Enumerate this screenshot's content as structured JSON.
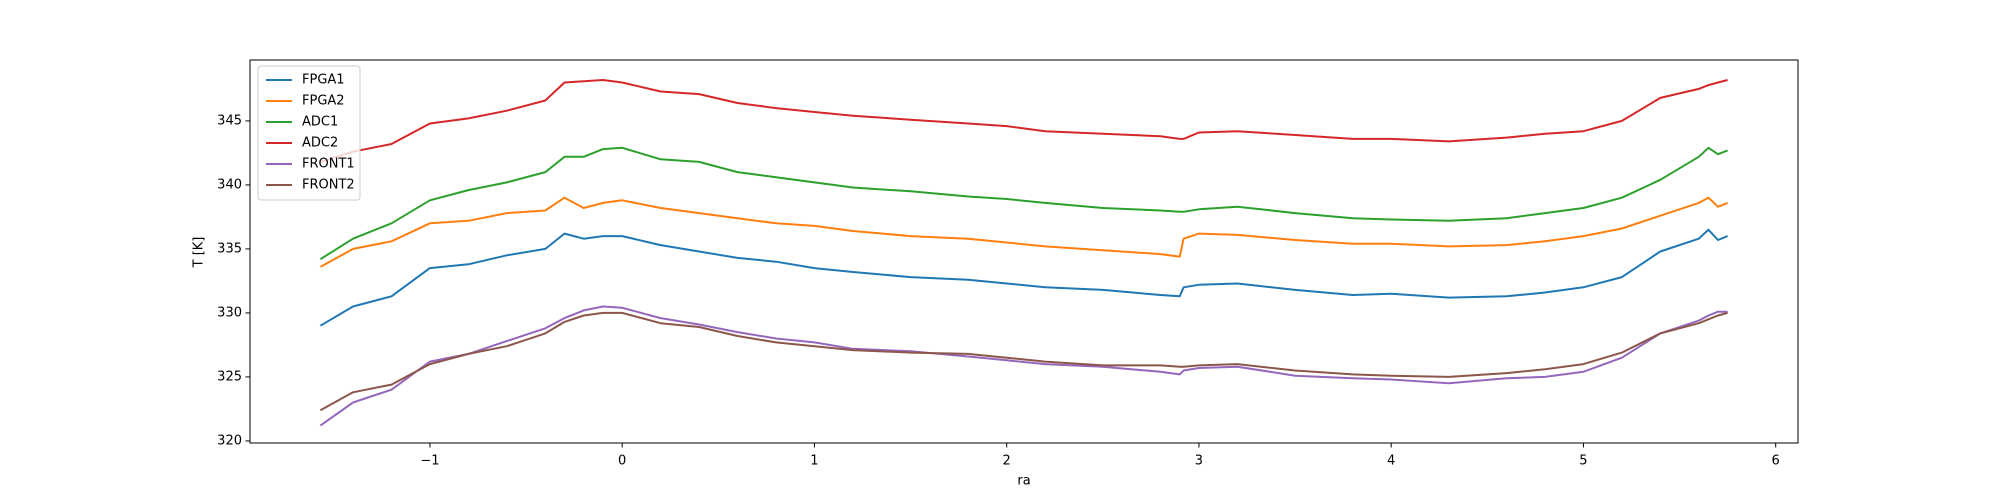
{
  "chart_data": {
    "type": "line",
    "xlabel": "ra",
    "ylabel": "T [K]",
    "x": [
      -1.57,
      -1.4,
      -1.2,
      -1.0,
      -0.8,
      -0.6,
      -0.4,
      -0.3,
      -0.2,
      -0.1,
      0,
      0.2,
      0.4,
      0.6,
      0.8,
      1.0,
      1.2,
      1.5,
      1.8,
      2.0,
      2.2,
      2.5,
      2.8,
      2.9,
      2.92,
      3.0,
      3.2,
      3.5,
      3.8,
      4.0,
      4.3,
      4.6,
      4.8,
      5.0,
      5.2,
      5.4,
      5.6,
      5.65,
      5.7,
      5.75
    ],
    "series": [
      {
        "name": "FPGA1",
        "color": "#1f77b4",
        "values": [
          329,
          330.5,
          331.3,
          333.5,
          333.8,
          334.5,
          335,
          336.2,
          335.8,
          336,
          336,
          335.3,
          334.8,
          334.3,
          334,
          333.5,
          333.2,
          332.8,
          332.6,
          332.3,
          332,
          331.8,
          331.4,
          331.3,
          332,
          332.2,
          332.3,
          331.8,
          331.4,
          331.5,
          331.2,
          331.3,
          331.6,
          332,
          332.8,
          334.8,
          335.8,
          336.5,
          335.7,
          336
        ]
      },
      {
        "name": "FPGA2",
        "color": "#ff7f0e",
        "values": [
          333.6,
          335,
          335.6,
          337,
          337.2,
          337.8,
          338,
          339,
          338.2,
          338.6,
          338.8,
          338.2,
          337.8,
          337.4,
          337,
          336.8,
          336.4,
          336,
          335.8,
          335.5,
          335.2,
          334.9,
          334.6,
          334.4,
          335.8,
          336.2,
          336.1,
          335.7,
          335.4,
          335.4,
          335.2,
          335.3,
          335.6,
          336,
          336.6,
          337.6,
          338.6,
          339,
          338.3,
          338.6
        ]
      },
      {
        "name": "ADC1",
        "color": "#2ca02c",
        "values": [
          334.2,
          335.8,
          337,
          338.8,
          339.6,
          340.2,
          341,
          342.2,
          342.2,
          342.8,
          342.9,
          342,
          341.8,
          341,
          340.6,
          340.2,
          339.8,
          339.5,
          339.1,
          338.9,
          338.6,
          338.2,
          338,
          337.9,
          337.9,
          338.1,
          338.3,
          337.8,
          337.4,
          337.3,
          337.2,
          337.4,
          337.8,
          338.2,
          339,
          340.4,
          342.2,
          342.9,
          342.4,
          342.7
        ]
      },
      {
        "name": "ADC2",
        "color": "#d62728",
        "values": [
          341.8,
          342.6,
          343.2,
          344.8,
          345.2,
          345.8,
          346.6,
          348,
          348.1,
          348.2,
          348,
          347.3,
          347.1,
          346.4,
          346,
          345.7,
          345.4,
          345.1,
          344.8,
          344.6,
          344.2,
          344,
          343.8,
          343.6,
          343.6,
          344.1,
          344.2,
          343.9,
          343.6,
          343.6,
          343.4,
          343.7,
          344,
          344.2,
          345,
          346.8,
          347.5,
          347.8,
          348,
          348.2
        ]
      },
      {
        "name": "FRONT1",
        "color": "#9467bd",
        "values": [
          321.2,
          323,
          324,
          326.2,
          326.8,
          327.8,
          328.8,
          329.6,
          330.2,
          330.5,
          330.4,
          329.6,
          329.1,
          328.5,
          328,
          327.7,
          327.2,
          327,
          326.6,
          326.3,
          326,
          325.8,
          325.4,
          325.2,
          325.5,
          325.7,
          325.8,
          325.1,
          324.9,
          324.8,
          324.5,
          324.9,
          325,
          325.4,
          326.5,
          328.4,
          329.4,
          329.8,
          330.1,
          330.1
        ]
      },
      {
        "name": "FRONT2",
        "color": "#8c564b",
        "values": [
          322.4,
          323.8,
          324.4,
          326,
          326.8,
          327.4,
          328.4,
          329.3,
          329.8,
          330,
          330,
          329.2,
          328.9,
          328.2,
          327.7,
          327.4,
          327.1,
          326.9,
          326.8,
          326.5,
          326.2,
          325.9,
          325.9,
          325.8,
          325.8,
          325.9,
          326,
          325.5,
          325.2,
          325.1,
          325,
          325.3,
          325.6,
          326,
          326.9,
          328.4,
          329.2,
          329.5,
          329.8,
          330
        ]
      }
    ],
    "xlim": [
      -1.936,
      6.116
    ],
    "xticks": [
      {
        "value": -1,
        "label": "−1"
      },
      0,
      1,
      2,
      3,
      4,
      5,
      6
    ],
    "ylim": [
      319.84,
      349.76
    ],
    "yticks": [
      320,
      325,
      330,
      335,
      340,
      345
    ],
    "legend": "upper left"
  }
}
